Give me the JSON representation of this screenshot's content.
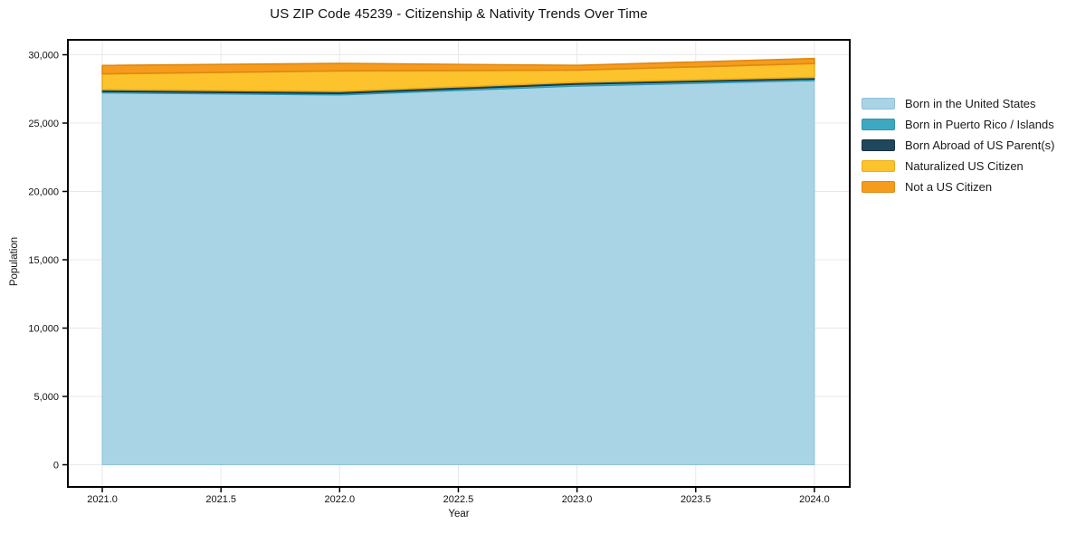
{
  "title": "US ZIP Code 45239 - Citizenship & Nativity Trends Over Time",
  "chart_data": {
    "type": "area",
    "stacked": true,
    "title": "US ZIP Code 45239 - Citizenship & Nativity Trends Over Time",
    "xlabel": "Year",
    "ylabel": "Population",
    "x": [
      2021,
      2022,
      2023,
      2024
    ],
    "xlim": [
      2020.855,
      2024.149
    ],
    "ylim": [
      0,
      30000
    ],
    "x_ticks": [
      2021.0,
      2021.5,
      2022.0,
      2022.5,
      2023.0,
      2023.5,
      2024.0
    ],
    "x_tick_labels": [
      "2021.0",
      "2021.5",
      "2022.0",
      "2022.5",
      "2023.0",
      "2023.5",
      "2024.0"
    ],
    "y_ticks": [
      0,
      5000,
      10000,
      15000,
      20000,
      25000,
      30000
    ],
    "y_tick_labels": [
      "0",
      "5,000",
      "10,000",
      "15,000",
      "20,000",
      "25,000",
      "30,000"
    ],
    "grid": true,
    "grid_color": "#e8e8e8",
    "axis_color": "#000000",
    "legend_position": "right",
    "series": [
      {
        "name": "Born in the United States",
        "color": "#a8d4e6",
        "edge": "#8fc2da",
        "values": [
          27200,
          27050,
          27700,
          28100
        ]
      },
      {
        "name": "Born in Puerto Rico / Islands",
        "color": "#3ea8c0",
        "edge": "#2f94ac",
        "values": [
          105,
          100,
          135,
          115
        ]
      },
      {
        "name": "Born Abroad of US Parent(s)",
        "color": "#20485c",
        "edge": "#16323f",
        "values": [
          145,
          170,
          150,
          135
        ]
      },
      {
        "name": "Naturalized US Citizen",
        "color": "#fcc32d",
        "edge": "#edad12",
        "values": [
          1150,
          1500,
          890,
          1010
        ]
      },
      {
        "name": "Not a US Citizen",
        "color": "#f59c1f",
        "edge": "#e0880d",
        "values": [
          620,
          550,
          350,
          365
        ]
      }
    ]
  }
}
